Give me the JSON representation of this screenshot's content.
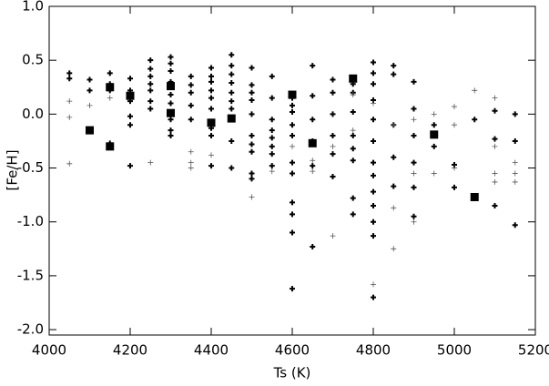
{
  "chart_data": {
    "type": "scatter",
    "xlabel": "Ts (K)",
    "ylabel": "[Fe/H]",
    "xlim": [
      4000,
      5200
    ],
    "xticks": [
      4000,
      4200,
      4400,
      4600,
      4800,
      5000,
      5200
    ],
    "ylim": [
      -2.05,
      1.0
    ],
    "yticks": [
      {
        "value": 1.0,
        "label": "1.0"
      },
      {
        "value": 0.5,
        "label": "0.5"
      },
      {
        "value": 0.0,
        "label": "0.0"
      },
      {
        "value": -0.5,
        "label": "-0.5"
      },
      {
        "value": -1.0,
        "label": "-1.0"
      },
      {
        "value": -1.5,
        "label": "-1.5"
      },
      {
        "value": -2.0,
        "label": "-2.0"
      }
    ],
    "series": [
      {
        "marker": "plus-bold",
        "color": "#000000",
        "x": [
          4050,
          4050,
          4100,
          4100,
          4150,
          4150,
          4150,
          4150,
          4200,
          4200,
          4200,
          4200,
          4200,
          4200,
          4250,
          4250,
          4250,
          4250,
          4250,
          4250,
          4250,
          4300,
          4300,
          4300,
          4300,
          4300,
          4300,
          4300,
          4300,
          4300,
          4350,
          4350,
          4350,
          4350,
          4350,
          4400,
          4400,
          4400,
          4400,
          4400,
          4400,
          4400,
          4400,
          4400,
          4450,
          4450,
          4450,
          4450,
          4450,
          4450,
          4450,
          4450,
          4450,
          4500,
          4500,
          4500,
          4500,
          4500,
          4500,
          4500,
          4500,
          4500,
          4500,
          4550,
          4550,
          4550,
          4550,
          4550,
          4550,
          4550,
          4550,
          4600,
          4600,
          4600,
          4600,
          4600,
          4600,
          4600,
          4600,
          4600,
          4600,
          4600,
          4650,
          4650,
          4650,
          4650,
          4650,
          4650,
          4700,
          4700,
          4700,
          4700,
          4700,
          4700,
          4750,
          4750,
          4750,
          4750,
          4750,
          4750,
          4750,
          4750,
          4800,
          4800,
          4800,
          4800,
          4800,
          4800,
          4800,
          4800,
          4800,
          4800,
          4800,
          4800,
          4800,
          4850,
          4850,
          4850,
          4850,
          4850,
          4900,
          4900,
          4900,
          4900,
          4900,
          4900,
          4950,
          4950,
          5000,
          5000,
          5050,
          5100,
          5100,
          5100,
          5150,
          5150,
          5150
        ],
        "values": [
          0.38,
          0.33,
          0.32,
          0.22,
          0.38,
          0.28,
          0.22,
          -0.27,
          0.33,
          0.22,
          0.12,
          -0.02,
          -0.1,
          -0.48,
          0.5,
          0.42,
          0.35,
          0.28,
          0.22,
          0.12,
          0.05,
          0.53,
          0.47,
          0.4,
          0.3,
          0.18,
          0.1,
          -0.05,
          -0.15,
          -0.2,
          0.35,
          0.27,
          0.2,
          0.08,
          -0.05,
          0.43,
          0.35,
          0.3,
          0.22,
          0.15,
          0.05,
          -0.13,
          -0.2,
          -0.48,
          0.55,
          0.45,
          0.37,
          0.29,
          0.2,
          0.12,
          0.05,
          -0.25,
          -0.5,
          0.43,
          0.27,
          0.2,
          0.13,
          0.0,
          -0.2,
          -0.28,
          -0.35,
          -0.55,
          -0.6,
          0.35,
          0.15,
          -0.05,
          -0.15,
          -0.22,
          -0.3,
          -0.37,
          -0.48,
          0.15,
          0.08,
          0.02,
          -0.1,
          -0.2,
          -0.45,
          -0.55,
          -0.82,
          -0.93,
          -1.1,
          -1.62,
          0.45,
          0.17,
          -0.05,
          -0.25,
          -0.48,
          -1.23,
          0.32,
          0.2,
          0.0,
          -0.2,
          -0.37,
          -0.58,
          0.28,
          0.2,
          0.02,
          -0.2,
          -0.32,
          -0.43,
          -0.78,
          -0.93,
          0.48,
          0.38,
          0.28,
          0.13,
          -0.05,
          -0.25,
          -0.45,
          -0.57,
          -0.72,
          -0.85,
          -1.0,
          -1.13,
          -1.7,
          0.45,
          0.37,
          -0.1,
          -0.4,
          -0.67,
          0.3,
          0.05,
          -0.2,
          -0.45,
          -0.68,
          -0.95,
          -0.1,
          -0.3,
          -0.47,
          -0.68,
          -0.05,
          0.03,
          -0.23,
          -0.85,
          0.0,
          -0.25,
          -1.03
        ]
      },
      {
        "marker": "plus-thin",
        "color": "#555555",
        "x": [
          4050,
          4050,
          4050,
          4100,
          4150,
          4250,
          4350,
          4350,
          4350,
          4400,
          4500,
          4550,
          4600,
          4650,
          4650,
          4700,
          4700,
          4750,
          4750,
          4800,
          4800,
          4850,
          4850,
          4850,
          4900,
          4900,
          4900,
          4950,
          4950,
          5000,
          5000,
          5000,
          5050,
          5100,
          5100,
          5100,
          5100,
          5150,
          5150,
          5150
        ],
        "values": [
          0.12,
          -0.03,
          -0.46,
          0.08,
          0.15,
          -0.45,
          -0.35,
          -0.45,
          -0.5,
          -0.38,
          -0.77,
          -0.53,
          -0.3,
          -0.53,
          -0.43,
          -1.13,
          -0.3,
          0.18,
          -0.15,
          -1.58,
          0.1,
          -0.1,
          -0.87,
          -1.25,
          -0.05,
          -0.55,
          -1.0,
          0.0,
          -0.55,
          0.07,
          -0.1,
          -0.5,
          0.22,
          0.15,
          -0.3,
          -0.55,
          -0.63,
          -0.45,
          -0.55,
          -0.63
        ]
      },
      {
        "marker": "square",
        "color": "#000000",
        "x": [
          4100,
          4150,
          4150,
          4200,
          4300,
          4300,
          4400,
          4450,
          4600,
          4650,
          4750,
          4950,
          5050
        ],
        "values": [
          -0.15,
          -0.3,
          0.25,
          0.17,
          0.26,
          0.01,
          -0.08,
          -0.04,
          0.18,
          -0.27,
          0.33,
          -0.19,
          -0.77
        ]
      }
    ]
  }
}
